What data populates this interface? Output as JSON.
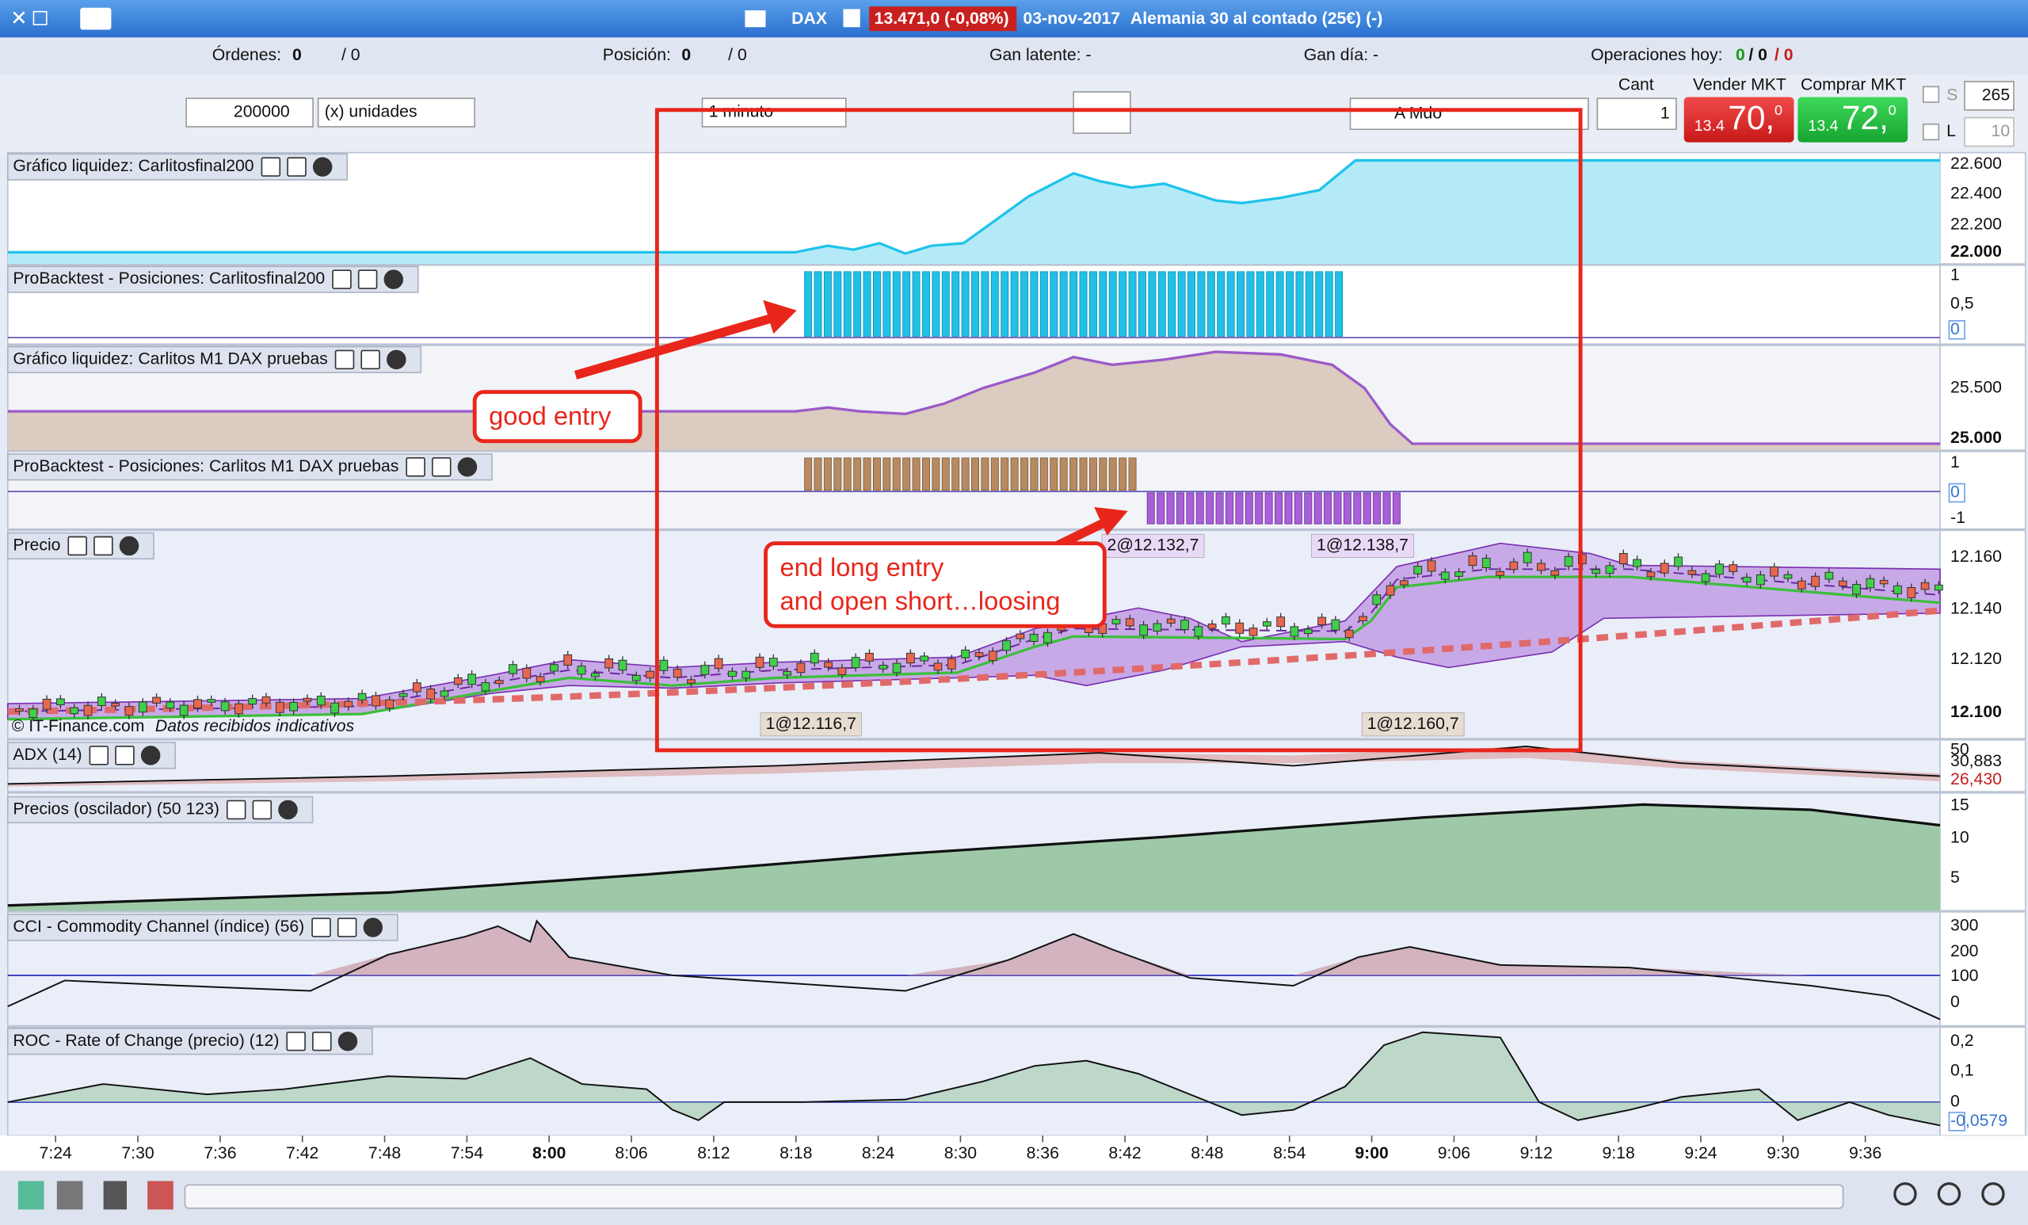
{
  "toolbar": {
    "symbol": "DAX",
    "price": "13.471,0 (-0,08%)",
    "date": "03-nov-2017",
    "instrument": "Alemania 30 al contado (25€) (-)"
  },
  "status": {
    "orders_label": "Órdenes:",
    "orders": "0",
    "orders_total": "/ 0",
    "position_label": "Posición:",
    "position": "0",
    "position_total": "/ 0",
    "latent": "Gan latente: -",
    "day": "Gan día: -",
    "ops_label": "Operaciones hoy:",
    "ops_1": "0",
    "ops_2": "/ 0",
    "ops_3": "/ 0"
  },
  "controls": {
    "quantity": "200000",
    "units": "(x) unidades",
    "timeframe": "1 minuto",
    "order_type": "A Mdo",
    "cant_label": "Cant",
    "cant": "1",
    "sell_label": "Vender MKT",
    "buy_label": "Comprar MKT",
    "sell_prefix": "13.4",
    "sell_main": "70,",
    "sell_sup": "0",
    "buy_prefix": "13.4",
    "buy_main": "72,",
    "buy_sup": "0",
    "s_label": "S",
    "s_value": "265",
    "l_label": "L",
    "l_value": "10"
  },
  "panels": [
    {
      "title": "Gráfico liquidez: Carlitosfinal200",
      "ticks": [
        "22.600",
        "22.400",
        "22.200",
        "22.000"
      ]
    },
    {
      "title": "ProBacktest - Posiciones: Carlitosfinal200",
      "ticks": [
        "1",
        "0,5",
        "0"
      ]
    },
    {
      "title": "Gráfico liquidez: Carlitos M1 DAX pruebas",
      "ticks": [
        "25.500",
        "25.000"
      ]
    },
    {
      "title": "ProBacktest - Posiciones: Carlitos M1 DAX pruebas",
      "ticks": [
        "1",
        "0",
        "-1"
      ]
    },
    {
      "title": "Precio",
      "ticks": [
        "12.160",
        "12.140",
        "12.120",
        "12.100"
      ]
    },
    {
      "title": "ADX (14)",
      "ticks": [
        "50",
        "30,883",
        "26,430"
      ]
    },
    {
      "title": "Precios (oscilador) (50 123)",
      "ticks": [
        "15",
        "10",
        "5"
      ]
    },
    {
      "title": "CCI - Commodity Channel (índice) (56)",
      "ticks": [
        "300",
        "200",
        "100",
        "0"
      ]
    },
    {
      "title": "ROC - Rate of Change (precio) (12)",
      "ticks": [
        "0,2",
        "0,1",
        "0",
        "-0,0579"
      ]
    }
  ],
  "trade_labels": [
    "2@12.132,7",
    "1@12.138,7",
    "1@12.116,7",
    "1@12.160,7"
  ],
  "source": "© IT-Finance.com",
  "source_note": "Datos recibidos indicativos",
  "time_axis": [
    "7:24",
    "7:30",
    "7:36",
    "7:42",
    "7:48",
    "7:54",
    "8:00",
    "8:06",
    "8:12",
    "8:18",
    "8:24",
    "8:30",
    "8:36",
    "8:42",
    "8:48",
    "8:54",
    "9:00",
    "9:06",
    "9:12",
    "9:18",
    "9:24",
    "9:30",
    "9:36"
  ],
  "annotations": {
    "good": "good entry",
    "end_1": "end long entry",
    "end_2": "and open short…loosing"
  }
}
